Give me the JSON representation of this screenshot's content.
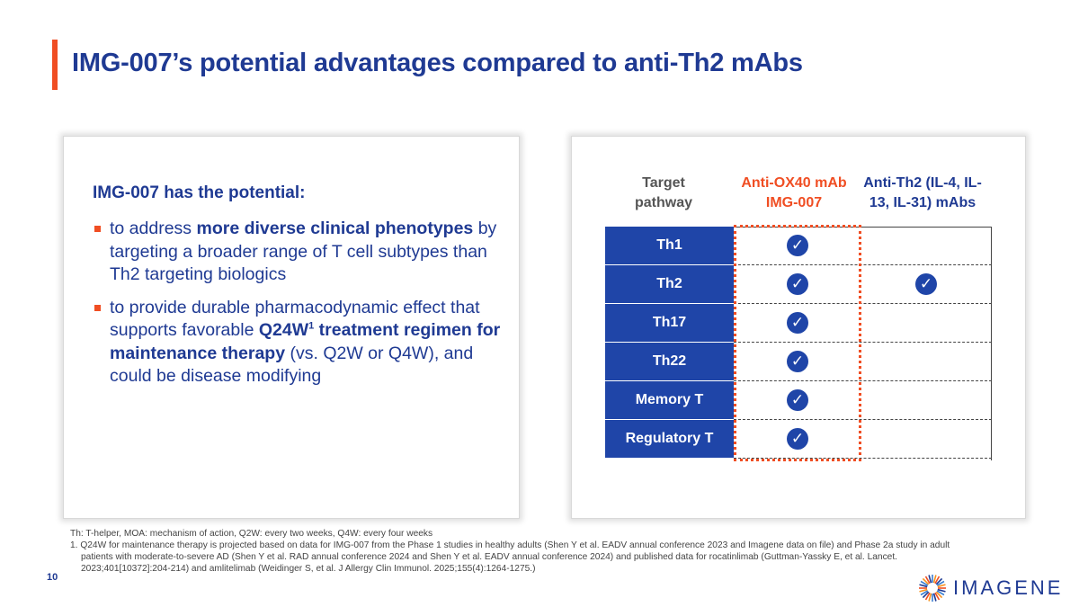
{
  "slide": {
    "title": "IMG-007’s potential advantages compared to anti-Th2 mAbs",
    "page_number": "10",
    "accent_color": "#f04e23",
    "brand_color": "#1f3a93"
  },
  "left_panel": {
    "heading": "IMG-007 has the potential:",
    "bullet1": {
      "pre": "to address ",
      "bold": "more diverse clinical phenotypes",
      "post": " by targeting a broader range of T cell subtypes than Th2 targeting biologics"
    },
    "bullet2": {
      "pre": "to provide durable pharmacodynamic effect that supports favorable ",
      "bold1": "Q24W",
      "sup": "1",
      "bold2": " treatment regimen for maintenance therapy",
      "post": " (vs. Q2W or Q4W), and could be disease modifying"
    }
  },
  "table": {
    "headers": {
      "target": "Target pathway",
      "ox40": "Anti-OX40 mAb IMG-007",
      "th2": "Anti-Th2 (IL-4, IL-13, IL-31) mAbs"
    },
    "check_glyph": "✓",
    "rows": [
      {
        "label": "Th1",
        "ox40": true,
        "th2": false
      },
      {
        "label": "Th2",
        "ox40": true,
        "th2": true
      },
      {
        "label": "Th17",
        "ox40": true,
        "th2": false
      },
      {
        "label": "Th22",
        "ox40": true,
        "th2": false
      },
      {
        "label": "Memory T",
        "ox40": true,
        "th2": false
      },
      {
        "label": "Regulatory T",
        "ox40": true,
        "th2": false
      }
    ]
  },
  "footnotes": {
    "abbrev": "Th: T-helper, MOA: mechanism of action, Q2W: every two weeks, Q4W: every four weeks",
    "note1": "1.  Q24W for maintenance therapy is projected based on data for IMG-007 from the Phase 1 studies in healthy adults (Shen Y et al. EADV annual conference 2023 and Imagene data on file) and Phase 2a study in adult patients with moderate-to-severe AD (Shen Y et al. RAD annual conference 2024 and Shen Y et al. EADV annual conference 2024) and published data for rocatinlimab (Guttman-Yassky E, et al. Lancet. 2023;401[10372]:204-214) and amlitelimab (Weidinger S, et al. J Allergy Clin Immunol. 2025;155(4):1264-1275.)"
  },
  "logo": {
    "text": "IMAGENE",
    "icon": "sunburst-logo-icon"
  }
}
